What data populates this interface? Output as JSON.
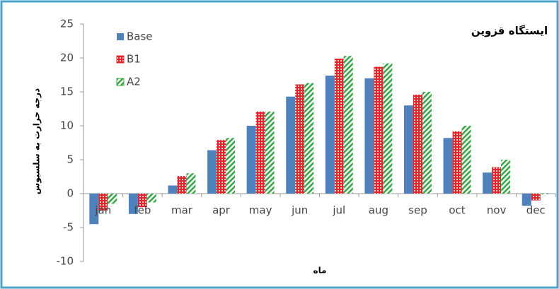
{
  "chart_data": {
    "type": "bar",
    "title": "ایستگاه قزوین",
    "x_label": "ماه",
    "y_label": "درجه حرارت به سلسیوس",
    "categories": [
      "jan",
      "feb",
      "mar",
      "apr",
      "may",
      "jun",
      "jul",
      "aug",
      "sep",
      "oct",
      "nov",
      "dec"
    ],
    "series": [
      {
        "name": "Base",
        "color": "#4f81bd",
        "pattern": "solid",
        "values": [
          -4.5,
          -3,
          1.2,
          6.4,
          10,
          14.3,
          17.4,
          17,
          13,
          8.2,
          3.1,
          -1.8
        ]
      },
      {
        "name": "B1",
        "color": "#e0262b",
        "pattern": "dots",
        "values": [
          -2.5,
          -2,
          2.6,
          7.9,
          12.1,
          16.1,
          19.9,
          18.7,
          14.6,
          9.2,
          3.9,
          -1
        ]
      },
      {
        "name": "A2",
        "color": "#3aa64a",
        "pattern": "stripes",
        "values": [
          -1.5,
          -1.3,
          3,
          8.2,
          12.1,
          16.3,
          20.3,
          19.2,
          15,
          10,
          5,
          -0.1
        ]
      }
    ],
    "ylim": [
      -10,
      25
    ],
    "yticks": [
      -10,
      -5,
      0,
      5,
      10,
      15,
      20,
      25
    ],
    "legend": "top-left"
  }
}
